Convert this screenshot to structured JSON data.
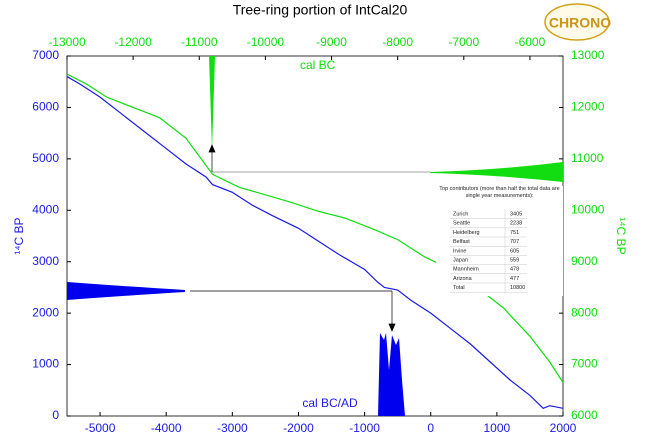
{
  "chart_data": {
    "type": "line",
    "title": "Tree-ring portion of IntCal20",
    "ylabel": "¹⁴C BP",
    "y2label": "¹⁴C BP",
    "annotations": [
      "cal BC",
      "cal BC/AD"
    ],
    "xlim": [
      -5500,
      2000
    ],
    "xticks": [
      -5000,
      -4000,
      -3000,
      -2000,
      -1000,
      0,
      1000,
      2000
    ],
    "x2lim": [
      -13000,
      -5500
    ],
    "x2ticks": [
      -13000,
      -12000,
      -11000,
      -10000,
      -9000,
      -8000,
      -7000,
      -6000
    ],
    "ylim": [
      0,
      7000
    ],
    "yticks": [
      0,
      1000,
      2000,
      3000,
      4000,
      5000,
      6000,
      7000
    ],
    "y2lim": [
      6000,
      13000
    ],
    "y2ticks": [
      6000,
      7000,
      8000,
      9000,
      10000,
      11000,
      12000,
      13000
    ],
    "series": [
      {
        "color": "#1a1ae6",
        "x": [
          -5500,
          -5300,
          -5000,
          -4700,
          -4400,
          -4000,
          -3700,
          -3400,
          -3300,
          -3000,
          -2700,
          -2400,
          -2000,
          -1700,
          -1400,
          -1000,
          -800,
          -700,
          -500,
          -300,
          0,
          300,
          600,
          900,
          1200,
          1500,
          1700,
          1800,
          2000
        ],
        "values": [
          6600,
          6450,
          6200,
          5900,
          5600,
          5200,
          4900,
          4650,
          4500,
          4350,
          4100,
          3900,
          3650,
          3400,
          3150,
          2850,
          2600,
          2500,
          2450,
          2250,
          2000,
          1700,
          1400,
          1050,
          700,
          400,
          150,
          200,
          150
        ]
      },
      {
        "color": "#11dd11",
        "axis": "y2",
        "x": [
          -13000,
          -12700,
          -12400,
          -12000,
          -11600,
          -11200,
          -10800,
          -10400,
          -10000,
          -9600,
          -9200,
          -8800,
          -8400,
          -8000,
          -7600,
          -7200,
          -6800,
          -6400,
          -6000,
          -5700,
          -5500
        ],
        "values": [
          12650,
          12450,
          12200,
          12000,
          11800,
          11400,
          10700,
          10450,
          10300,
          10150,
          9980,
          9850,
          9650,
          9430,
          9100,
          8850,
          8500,
          8100,
          7550,
          7050,
          6650
        ]
      }
    ]
  },
  "table": {
    "caption": "Top contributors (more than half the total data are single year measurements):",
    "rows": [
      [
        "Zurich",
        "3405"
      ],
      [
        "Seattle",
        "2238"
      ],
      [
        "Heidelberg",
        "751"
      ],
      [
        "Belfast",
        "707"
      ],
      [
        "Irvine",
        "605"
      ],
      [
        "Japan",
        "559"
      ],
      [
        "Mannheim",
        "478"
      ],
      [
        "Arizona",
        "477"
      ],
      [
        "Total",
        "10800"
      ]
    ]
  },
  "logo": "CHRONO"
}
